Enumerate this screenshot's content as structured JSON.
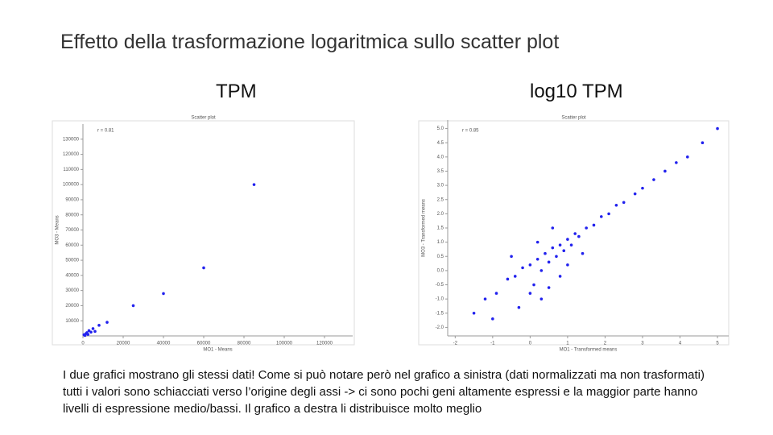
{
  "title": "Effetto della trasformazione logaritmica sullo scatter plot",
  "panels": [
    "TPM",
    "log10 TPM"
  ],
  "caption": "I due grafici mostrano gli stessi dati! Come si può notare però nel grafico a sinistra (dati normalizzati ma non trasformati) tutti i valori sono schiacciati verso l’origine degli assi -> ci sono pochi geni altamente espressi e la maggior parte hanno livelli di espressione medio/bassi. Il grafico a destra li distribuisce molto meglio",
  "chart_data": [
    {
      "type": "scatter",
      "title": "Scatter plot",
      "annotation": "r = 0.81",
      "xlabel": "MO1 - Means",
      "ylabel": "MO3 - Means",
      "color": "#2222ee",
      "x": [
        500,
        1000,
        1500,
        2000,
        2500,
        3000,
        4000,
        5000,
        6000,
        8000,
        12000,
        25000,
        40000,
        60000,
        85000
      ],
      "y": [
        800,
        300,
        1500,
        2200,
        1000,
        3500,
        2500,
        4800,
        3000,
        7000,
        9000,
        20000,
        28000,
        45000,
        100000
      ],
      "xlim": [
        0,
        134000
      ],
      "ylim": [
        0,
        140000
      ],
      "xticks": [
        0,
        20000,
        40000,
        60000,
        80000,
        100000,
        120000
      ],
      "yticks": [
        10000,
        20000,
        30000,
        40000,
        50000,
        60000,
        70000,
        80000,
        90000,
        100000,
        110000,
        120000,
        130000
      ]
    },
    {
      "type": "scatter",
      "title": "Scatter plot",
      "annotation": "r = 0.85",
      "xlabel": "MO1 - Transformed means",
      "ylabel": "MO3 - Transformed means",
      "color": "#2222ee",
      "x": [
        -1.2,
        -0.9,
        -0.6,
        -0.4,
        -0.2,
        0,
        0.1,
        0.2,
        0.3,
        0.4,
        0.5,
        0.6,
        0.7,
        0.8,
        0.9,
        1.0,
        1.1,
        1.2,
        1.3,
        1.5,
        1.7,
        1.9,
        2.1,
        2.3,
        2.5,
        2.8,
        3.0,
        3.3,
        3.6,
        3.9,
        4.2,
        4.6,
        5.0,
        -0.5,
        0.0,
        0.5,
        1.0,
        -1.0,
        -0.3,
        0.2,
        0.8,
        1.4,
        -1.5,
        0.3,
        0.6
      ],
      "y": [
        -1.0,
        -0.8,
        -0.3,
        -0.2,
        0.1,
        0.2,
        -0.5,
        0.4,
        0.0,
        0.6,
        0.3,
        0.8,
        0.5,
        0.9,
        0.7,
        1.1,
        0.9,
        1.3,
        1.2,
        1.5,
        1.6,
        1.9,
        2.0,
        2.3,
        2.4,
        2.7,
        2.9,
        3.2,
        3.5,
        3.8,
        4.0,
        4.5,
        5.0,
        0.5,
        -0.8,
        -0.6,
        0.2,
        -1.7,
        -1.3,
        1.0,
        -0.2,
        0.6,
        -1.5,
        -1.0,
        1.5
      ],
      "xlim": [
        -2.2,
        5.3
      ],
      "ylim": [
        -2.3,
        5.3
      ],
      "xticks": [
        -2,
        -1,
        0,
        1,
        2,
        3,
        4,
        5
      ],
      "yticks": [
        {
          "value": -2,
          "label": "-2.0"
        },
        -1.5,
        {
          "value": -1,
          "label": "-1.0"
        },
        -0.5,
        {
          "value": 0,
          "label": "0.0"
        },
        0.5,
        {
          "value": 1,
          "label": "1.0"
        },
        1.5,
        {
          "value": 2,
          "label": "2.0"
        },
        2.5,
        {
          "value": 3,
          "label": "3.0"
        },
        3.5,
        {
          "value": 4,
          "label": "4.0"
        },
        4.5,
        {
          "value": 5,
          "label": "5.0"
        }
      ]
    }
  ]
}
